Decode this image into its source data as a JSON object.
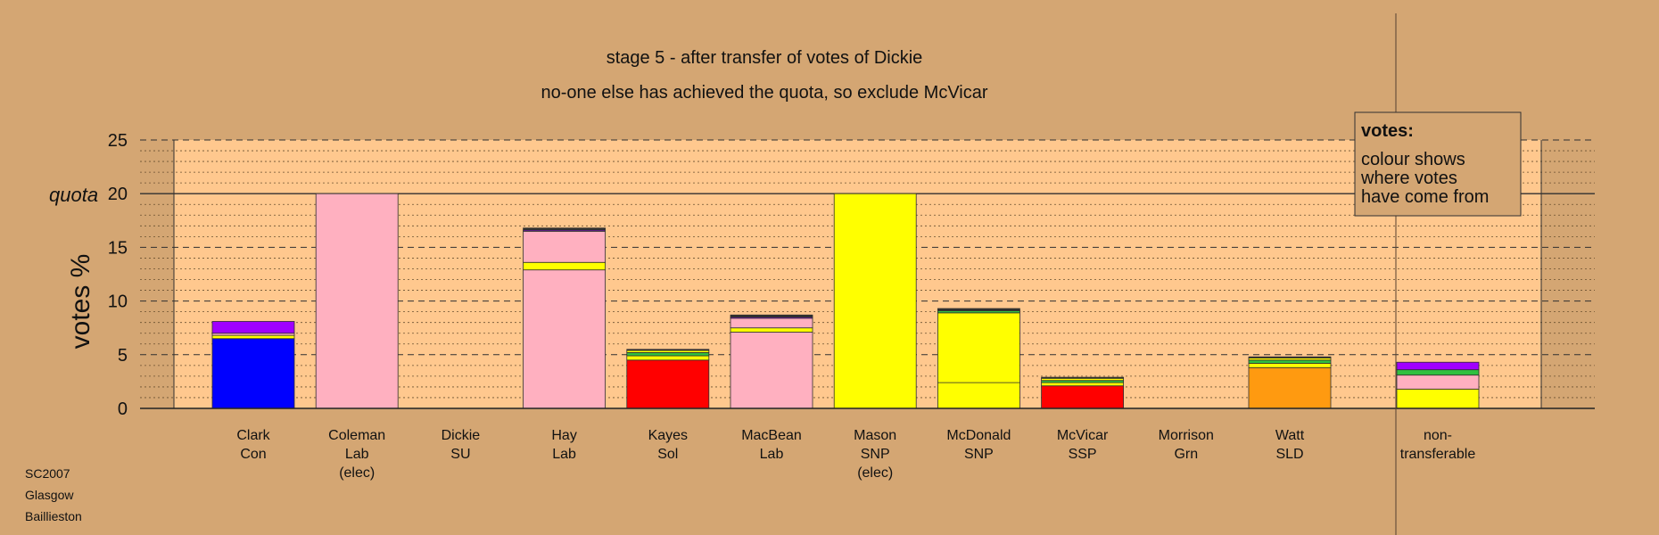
{
  "chart_data": {
    "type": "bar",
    "stacked": true,
    "title": "stage 5 - after transfer of votes of Dickie",
    "subtitle": "no-one else has achieved the quota, so exclude McVicar",
    "ylabel": "votes %",
    "ylim": [
      0,
      25
    ],
    "yticks": [
      0,
      5,
      10,
      15,
      20,
      25
    ],
    "quota_label": "quota",
    "quota_value": 20,
    "grid": true,
    "colors": {
      "Con": "#0000ff",
      "Lab": "#ffb0c0",
      "SNP": "#ffff00",
      "Sol": "#ff0000",
      "SSP": "#ff0000",
      "SLD": "#ff9a10",
      "SU": "#a000ff",
      "Grn": "#30c040",
      "Other": "#303030",
      "edge": "#303030"
    },
    "candidates": [
      {
        "lines": [
          "Clark",
          "Con"
        ],
        "segments": [
          {
            "from": "Con",
            "value": 6.5
          },
          {
            "from": "SNP",
            "value": 0.3
          },
          {
            "from": "Lab",
            "value": 0.2
          },
          {
            "from": "SU",
            "value": 1.1
          }
        ]
      },
      {
        "lines": [
          "Coleman",
          "Lab",
          "(elec)"
        ],
        "segments": [
          {
            "from": "Lab",
            "value": 20.0
          }
        ]
      },
      {
        "lines": [
          "Dickie",
          "SU"
        ],
        "segments": []
      },
      {
        "lines": [
          "Hay",
          "Lab"
        ],
        "segments": [
          {
            "from": "Lab",
            "value": 12.9
          },
          {
            "from": "SNP",
            "value": 0.7
          },
          {
            "from": "Lab",
            "value": 2.9
          },
          {
            "from": "SU",
            "value": 0.1
          },
          {
            "from": "Other",
            "value": 0.2
          }
        ]
      },
      {
        "lines": [
          "Kayes",
          "Sol"
        ],
        "segments": [
          {
            "from": "Sol",
            "value": 4.5
          },
          {
            "from": "SNP",
            "value": 0.4
          },
          {
            "from": "Grn",
            "value": 0.3
          },
          {
            "from": "SNP",
            "value": 0.2
          },
          {
            "from": "Other",
            "value": 0.1
          }
        ]
      },
      {
        "lines": [
          "MacBean",
          "Lab"
        ],
        "segments": [
          {
            "from": "Lab",
            "value": 7.1
          },
          {
            "from": "SNP",
            "value": 0.4
          },
          {
            "from": "Lab",
            "value": 0.9
          },
          {
            "from": "SU",
            "value": 0.1
          },
          {
            "from": "Other",
            "value": 0.2
          }
        ]
      },
      {
        "lines": [
          "Mason",
          "SNP",
          "(elec)"
        ],
        "segments": [
          {
            "from": "SNP",
            "value": 20.0
          }
        ]
      },
      {
        "lines": [
          "McDonald",
          "SNP"
        ],
        "segments": [
          {
            "from": "SNP",
            "value": 2.4
          },
          {
            "from": "SNP",
            "value": 6.5
          },
          {
            "from": "Grn",
            "value": 0.2
          },
          {
            "from": "Other",
            "value": 0.2
          }
        ]
      },
      {
        "lines": [
          "McVicar",
          "SSP"
        ],
        "segments": [
          {
            "from": "SSP",
            "value": 2.1
          },
          {
            "from": "SNP",
            "value": 0.3
          },
          {
            "from": "Grn",
            "value": 0.2
          },
          {
            "from": "SNP",
            "value": 0.2
          },
          {
            "from": "Other",
            "value": 0.1
          }
        ]
      },
      {
        "lines": [
          "Morrison",
          "Grn"
        ],
        "segments": []
      },
      {
        "lines": [
          "Watt",
          "SLD"
        ],
        "segments": [
          {
            "from": "SLD",
            "value": 3.8
          },
          {
            "from": "SNP",
            "value": 0.4
          },
          {
            "from": "Grn",
            "value": 0.3
          },
          {
            "from": "SNP",
            "value": 0.2
          },
          {
            "from": "Other",
            "value": 0.1
          }
        ]
      }
    ],
    "nontransferable": {
      "lines": [
        "non-",
        "transferable"
      ],
      "segments": [
        {
          "from": "SNP",
          "value": 1.8
        },
        {
          "from": "Lab",
          "value": 1.3
        },
        {
          "from": "Grn",
          "value": 0.5
        },
        {
          "from": "SU",
          "value": 0.7
        }
      ]
    }
  },
  "legend": {
    "heading": "votes:",
    "lines": [
      "colour shows",
      "where votes",
      "have come from"
    ]
  },
  "source": [
    "SC2007",
    "Glasgow",
    "Baillieston"
  ]
}
